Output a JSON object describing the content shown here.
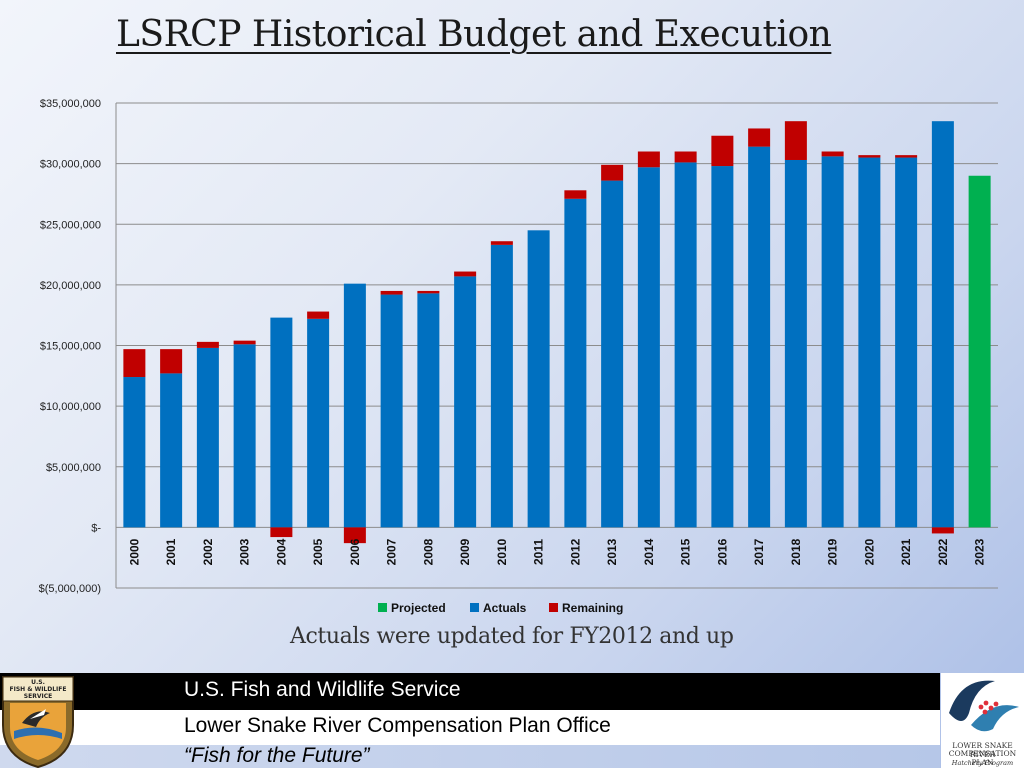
{
  "page": {
    "title": "LSRCP Historical Budget and Execution",
    "caption": "Actuals were updated for FY2012 and up"
  },
  "footer": {
    "agency": "U.S. Fish and Wildlife Service",
    "office": "Lower Snake River Compensation Plan Office",
    "tagline": "“Fish for the Future”",
    "left_logo_text": [
      "U.S.",
      "FISH & WILDLIFE",
      "SERVICE"
    ],
    "right_logo_text": [
      "LOWER SNAKE RIVER",
      "COMPENSATION PLAN",
      "Hatchery Program"
    ]
  },
  "chart_data": {
    "type": "bar",
    "stacked": true,
    "title": "",
    "xlabel": "",
    "ylabel": "",
    "ylim": [
      -5000000,
      35000000
    ],
    "yticks": [
      -5000000,
      0,
      5000000,
      10000000,
      15000000,
      20000000,
      25000000,
      30000000,
      35000000
    ],
    "ytick_labels": [
      "$(5,000,000)",
      "$-",
      "$5,000,000",
      "$10,000,000",
      "$15,000,000",
      "$20,000,000",
      "$25,000,000",
      "$30,000,000",
      "$35,000,000"
    ],
    "grid": true,
    "legend_position": "bottom",
    "categories": [
      "2000",
      "2001",
      "2002",
      "2003",
      "2004",
      "2005",
      "2006",
      "2007",
      "2008",
      "2009",
      "2010",
      "2011",
      "2012",
      "2013",
      "2014",
      "2015",
      "2016",
      "2017",
      "2018",
      "2019",
      "2020",
      "2021",
      "2022",
      "2023"
    ],
    "series": [
      {
        "name": "Projected",
        "color": "#00b050",
        "values": [
          0,
          0,
          0,
          0,
          0,
          0,
          0,
          0,
          0,
          0,
          0,
          0,
          0,
          0,
          0,
          0,
          0,
          0,
          0,
          0,
          0,
          0,
          0,
          29000000
        ]
      },
      {
        "name": "Actuals",
        "color": "#0070c0",
        "values": [
          12400000,
          12700000,
          14800000,
          15100000,
          17300000,
          17200000,
          20100000,
          19200000,
          19300000,
          20700000,
          23300000,
          24500000,
          27100000,
          28600000,
          29700000,
          30100000,
          29800000,
          31400000,
          30300000,
          30600000,
          30500000,
          30500000,
          33500000,
          0
        ]
      },
      {
        "name": "Remaining",
        "color": "#c00000",
        "values": [
          2300000,
          2000000,
          500000,
          300000,
          -800000,
          600000,
          -1300000,
          300000,
          200000,
          400000,
          300000,
          0,
          700000,
          1300000,
          1300000,
          900000,
          2500000,
          1500000,
          3200000,
          400000,
          200000,
          200000,
          -500000,
          0
        ]
      }
    ]
  }
}
